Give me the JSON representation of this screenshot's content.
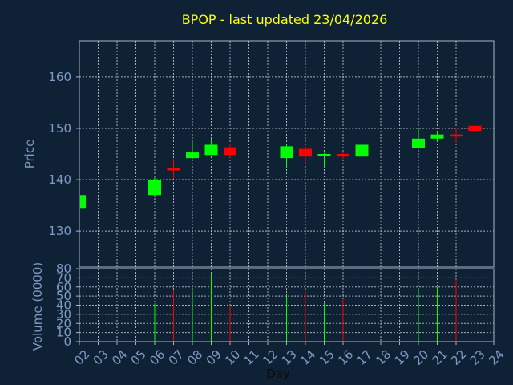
{
  "chart_data": {
    "type": "candlestick",
    "title": "BPOP - last updated 23/04/2026",
    "xlabel": "Day",
    "price_axis": {
      "label": "Price",
      "ticks": [
        130,
        140,
        150,
        160
      ],
      "range": [
        123,
        167
      ]
    },
    "volume_axis": {
      "label": "Volume (0000)",
      "ticks": [
        0,
        10,
        20,
        30,
        40,
        50,
        60,
        70,
        80
      ],
      "range": [
        0,
        80
      ]
    },
    "x_ticks": [
      "02",
      "03",
      "04",
      "05",
      "06",
      "07",
      "08",
      "09",
      "10",
      "11",
      "12",
      "13",
      "14",
      "15",
      "16",
      "17",
      "18",
      "19",
      "20",
      "21",
      "22",
      "23",
      "24"
    ],
    "grid": true,
    "colors": {
      "up": "#00ff00",
      "down": "#ff0000",
      "background": "#0f2135",
      "title": "#ffff00",
      "axis_text": "#7f9bc4"
    },
    "candles": [
      {
        "day": 2,
        "open": 134.5,
        "high": 137.0,
        "low": 134.0,
        "close": 137.0,
        "volume": 0
      },
      {
        "day": 6,
        "open": 137.0,
        "high": 140.5,
        "low": 137.0,
        "close": 140.0,
        "volume": 42
      },
      {
        "day": 7,
        "open": 142.2,
        "high": 144.0,
        "low": 140.2,
        "close": 141.8,
        "volume": 56
      },
      {
        "day": 8,
        "open": 144.2,
        "high": 147.5,
        "low": 144.0,
        "close": 145.3,
        "volume": 56
      },
      {
        "day": 9,
        "open": 144.8,
        "high": 148.0,
        "low": 144.8,
        "close": 146.8,
        "volume": 74
      },
      {
        "day": 10,
        "open": 146.3,
        "high": 147.0,
        "low": 144.3,
        "close": 144.8,
        "volume": 40
      },
      {
        "day": 13,
        "open": 144.2,
        "high": 146.8,
        "low": 142.5,
        "close": 146.5,
        "volume": 51
      },
      {
        "day": 14,
        "open": 146.0,
        "high": 146.5,
        "low": 143.2,
        "close": 144.5,
        "volume": 56
      },
      {
        "day": 15,
        "open": 144.8,
        "high": 145.2,
        "low": 142.5,
        "close": 145.0,
        "volume": 43
      },
      {
        "day": 16,
        "open": 145.0,
        "high": 145.5,
        "low": 144.0,
        "close": 144.5,
        "volume": 46
      },
      {
        "day": 17,
        "open": 144.5,
        "high": 149.5,
        "low": 144.5,
        "close": 146.8,
        "volume": 74
      },
      {
        "day": 20,
        "open": 146.2,
        "high": 150.0,
        "low": 146.0,
        "close": 148.0,
        "volume": 58
      },
      {
        "day": 21,
        "open": 148.0,
        "high": 149.5,
        "low": 147.5,
        "close": 148.8,
        "volume": 60
      },
      {
        "day": 22,
        "open": 148.8,
        "high": 150.0,
        "low": 147.2,
        "close": 148.4,
        "volume": 68
      },
      {
        "day": 23,
        "open": 150.5,
        "high": 151.0,
        "low": 146.0,
        "close": 149.5,
        "volume": 69
      }
    ]
  }
}
